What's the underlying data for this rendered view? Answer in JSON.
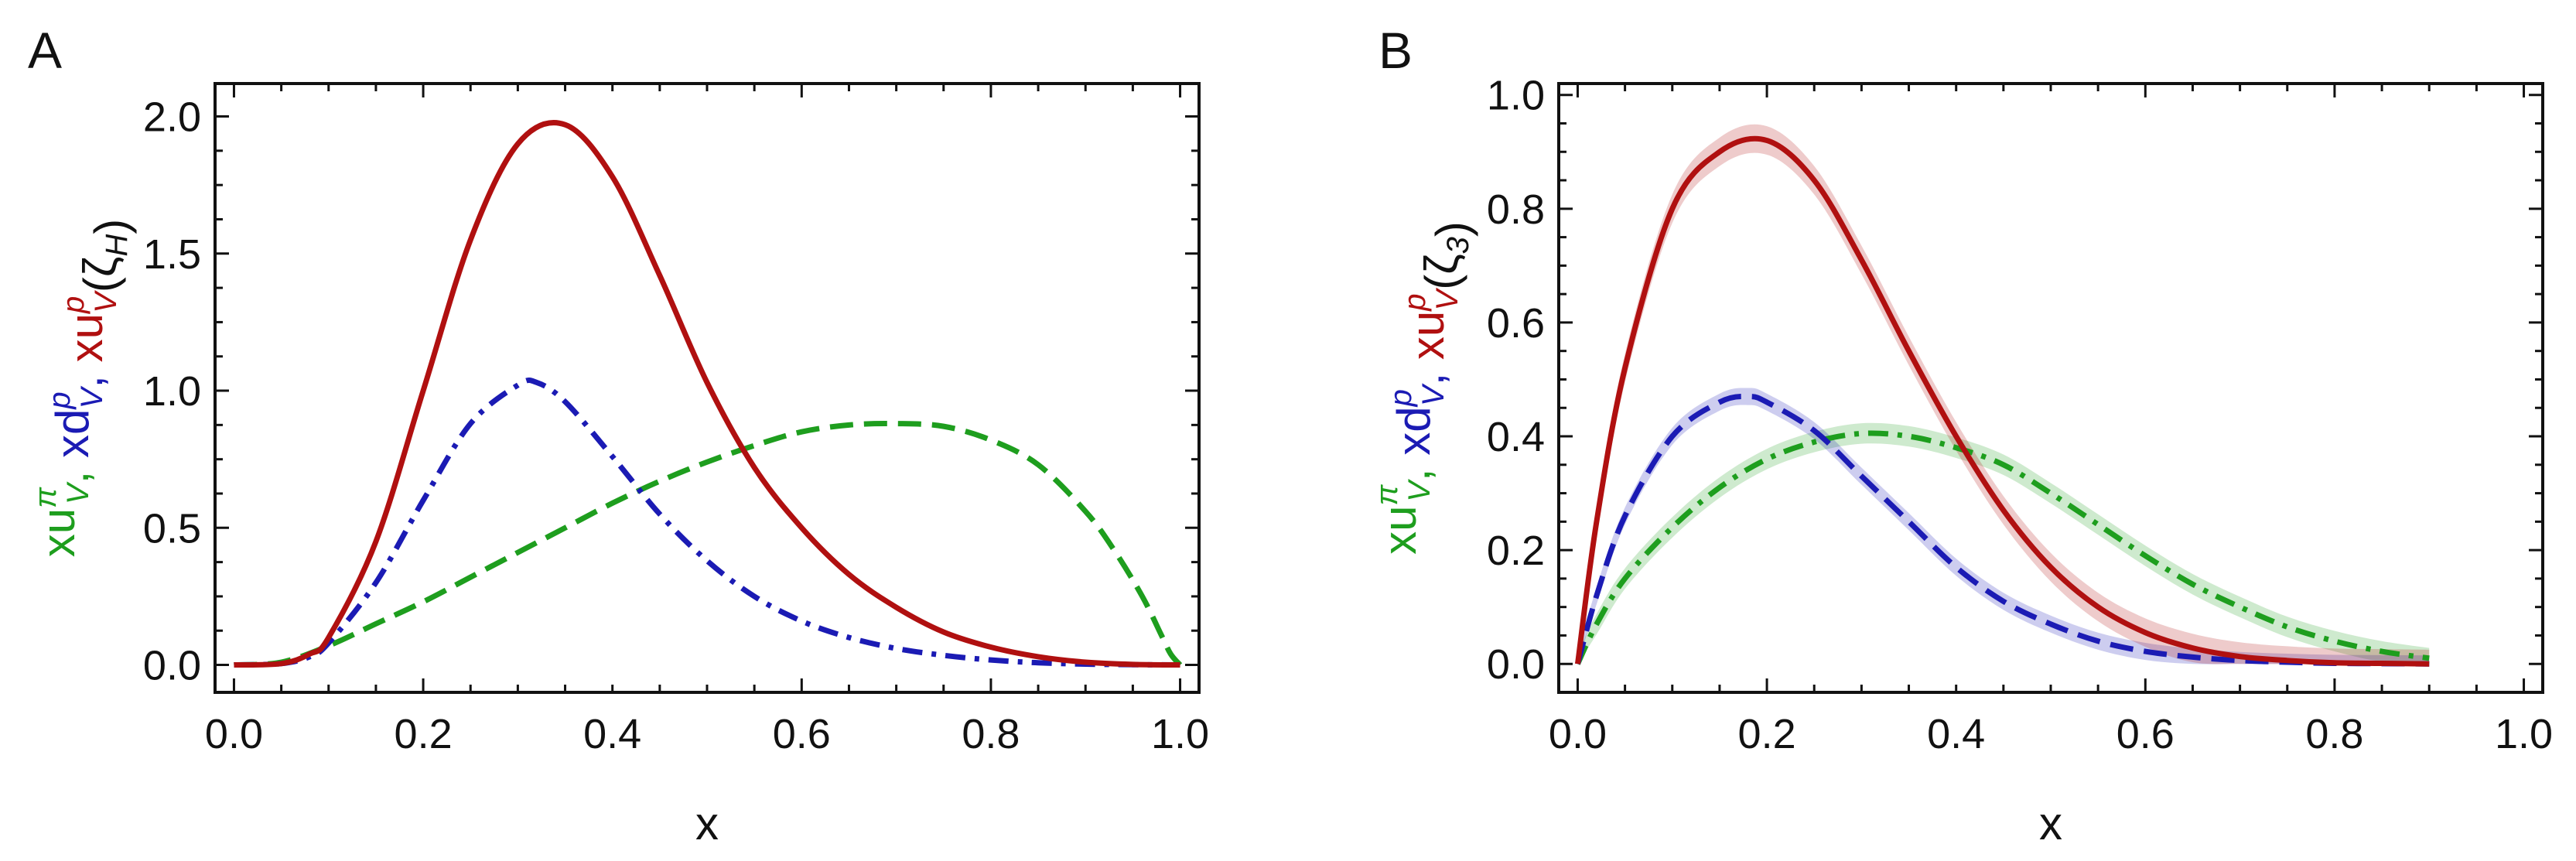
{
  "chart_data": [
    {
      "type": "line",
      "panel": "A",
      "xlabel": "x",
      "ylabel_parts": [
        {
          "text": "xu",
          "sub": "V",
          "sup": "π",
          "color": "#1e9e1e"
        },
        {
          "text": ", ",
          "color": "#1e9e1e"
        },
        {
          "text": "xd",
          "sub": "V",
          "sup": "p",
          "color": "#1b1bb4"
        },
        {
          "text": ", ",
          "color": "#1b1bb4"
        },
        {
          "text": "xu",
          "sub": "V",
          "sup": "p",
          "color": "#b01010"
        },
        {
          "text": "(ζ",
          "color": "#111111"
        },
        {
          "text": "",
          "sub": "H",
          "color": "#111111"
        },
        {
          "text": ")",
          "color": "#111111"
        }
      ],
      "xlim": [
        -0.02,
        1.02
      ],
      "ylim": [
        -0.1,
        2.12
      ],
      "xticks": [
        "0.0",
        "0.2",
        "0.4",
        "0.6",
        "0.8",
        "1.0"
      ],
      "xtick_values": [
        0,
        0.2,
        0.4,
        0.6,
        0.8,
        1.0
      ],
      "yticks": [
        "0.0",
        "0.5",
        "1.0",
        "1.5",
        "2.0"
      ],
      "ytick_values": [
        0,
        0.5,
        1.0,
        1.5,
        2.0
      ],
      "series": [
        {
          "name": "xu_V^π",
          "color": "#1e9e1e",
          "style": "dashed",
          "x": [
            0,
            0.05,
            0.1,
            0.15,
            0.2,
            0.25,
            0.3,
            0.35,
            0.4,
            0.45,
            0.5,
            0.55,
            0.6,
            0.65,
            0.7,
            0.75,
            0.8,
            0.85,
            0.9,
            0.93,
            0.96,
            0.98,
            0.99,
            1.0
          ],
          "y": [
            0,
            0.01,
            0.07,
            0.15,
            0.23,
            0.32,
            0.41,
            0.5,
            0.59,
            0.67,
            0.74,
            0.8,
            0.85,
            0.875,
            0.88,
            0.87,
            0.82,
            0.73,
            0.56,
            0.42,
            0.25,
            0.11,
            0.04,
            0.0
          ]
        },
        {
          "name": "xd_V^p",
          "color": "#1b1bb4",
          "style": "dashdot",
          "x": [
            0,
            0.05,
            0.08,
            0.1,
            0.15,
            0.2,
            0.25,
            0.3,
            0.32,
            0.35,
            0.4,
            0.45,
            0.5,
            0.55,
            0.6,
            0.65,
            0.7,
            0.75,
            0.8,
            0.85,
            0.9,
            0.95,
            1.0
          ],
          "y": [
            0,
            0.005,
            0.03,
            0.08,
            0.3,
            0.6,
            0.88,
            1.02,
            1.03,
            0.96,
            0.76,
            0.55,
            0.38,
            0.25,
            0.16,
            0.1,
            0.06,
            0.035,
            0.018,
            0.008,
            0.003,
            0.001,
            0
          ]
        },
        {
          "name": "xu_V^p",
          "color": "#b01010",
          "style": "solid",
          "x": [
            0,
            0.05,
            0.08,
            0.1,
            0.15,
            0.2,
            0.25,
            0.3,
            0.35,
            0.4,
            0.45,
            0.5,
            0.55,
            0.6,
            0.65,
            0.7,
            0.75,
            0.8,
            0.85,
            0.9,
            0.95,
            1.0
          ],
          "y": [
            0,
            0.005,
            0.04,
            0.1,
            0.45,
            1.0,
            1.55,
            1.9,
            1.97,
            1.78,
            1.42,
            1.03,
            0.72,
            0.5,
            0.33,
            0.21,
            0.12,
            0.065,
            0.03,
            0.01,
            0.002,
            0
          ]
        }
      ]
    },
    {
      "type": "line",
      "panel": "B",
      "xlabel": "x",
      "ylabel_parts": [
        {
          "text": "xu",
          "sub": "V",
          "sup": "π",
          "color": "#1e9e1e"
        },
        {
          "text": ", ",
          "color": "#1e9e1e"
        },
        {
          "text": "xd",
          "sub": "V",
          "sup": "p",
          "color": "#1b1bb4"
        },
        {
          "text": ", ",
          "color": "#1b1bb4"
        },
        {
          "text": "xu",
          "sub": "V",
          "sup": "p",
          "color": "#b01010"
        },
        {
          "text": "(ζ",
          "color": "#111111"
        },
        {
          "text": "",
          "sub": "3",
          "color": "#111111"
        },
        {
          "text": ")",
          "color": "#111111"
        }
      ],
      "xlim": [
        -0.02,
        1.02
      ],
      "ylim": [
        -0.05,
        1.02
      ],
      "xticks": [
        "0.0",
        "0.2",
        "0.4",
        "0.6",
        "0.8",
        "1.0"
      ],
      "xtick_values": [
        0,
        0.2,
        0.4,
        0.6,
        0.8,
        1.0
      ],
      "yticks": [
        "0.0",
        "0.2",
        "0.4",
        "0.6",
        "0.8",
        "1.0"
      ],
      "ytick_values": [
        0,
        0.2,
        0.4,
        0.6,
        0.8,
        1.0
      ],
      "series": [
        {
          "name": "xu_V^π",
          "color": "#1e9e1e",
          "style": "dashdot",
          "band": 0.018,
          "x": [
            0,
            0.02,
            0.05,
            0.1,
            0.15,
            0.2,
            0.25,
            0.3,
            0.35,
            0.4,
            0.45,
            0.5,
            0.55,
            0.6,
            0.65,
            0.7,
            0.75,
            0.8,
            0.85,
            0.9
          ],
          "y": [
            0,
            0.07,
            0.15,
            0.24,
            0.31,
            0.36,
            0.39,
            0.405,
            0.4,
            0.38,
            0.35,
            0.3,
            0.245,
            0.19,
            0.14,
            0.1,
            0.065,
            0.04,
            0.022,
            0.01
          ]
        },
        {
          "name": "xd_V^p",
          "color": "#1b1bb4",
          "style": "dashed",
          "band": 0.015,
          "x": [
            0,
            0.02,
            0.05,
            0.1,
            0.15,
            0.18,
            0.2,
            0.25,
            0.3,
            0.35,
            0.4,
            0.45,
            0.5,
            0.55,
            0.6,
            0.65,
            0.7,
            0.75,
            0.8,
            0.85,
            0.9
          ],
          "y": [
            0,
            0.12,
            0.26,
            0.4,
            0.46,
            0.47,
            0.46,
            0.41,
            0.33,
            0.25,
            0.17,
            0.11,
            0.07,
            0.04,
            0.022,
            0.012,
            0.006,
            0.003,
            0.001,
            0.0005,
            0
          ]
        },
        {
          "name": "xu_V^p",
          "color": "#b01010",
          "style": "solid",
          "band": 0.025,
          "x": [
            0,
            0.02,
            0.05,
            0.1,
            0.15,
            0.2,
            0.25,
            0.3,
            0.35,
            0.4,
            0.45,
            0.5,
            0.55,
            0.6,
            0.65,
            0.7,
            0.75,
            0.8,
            0.85,
            0.9
          ],
          "y": [
            0,
            0.25,
            0.52,
            0.8,
            0.9,
            0.92,
            0.85,
            0.71,
            0.55,
            0.4,
            0.27,
            0.17,
            0.1,
            0.055,
            0.028,
            0.013,
            0.006,
            0.002,
            0.001,
            0
          ]
        }
      ]
    }
  ]
}
